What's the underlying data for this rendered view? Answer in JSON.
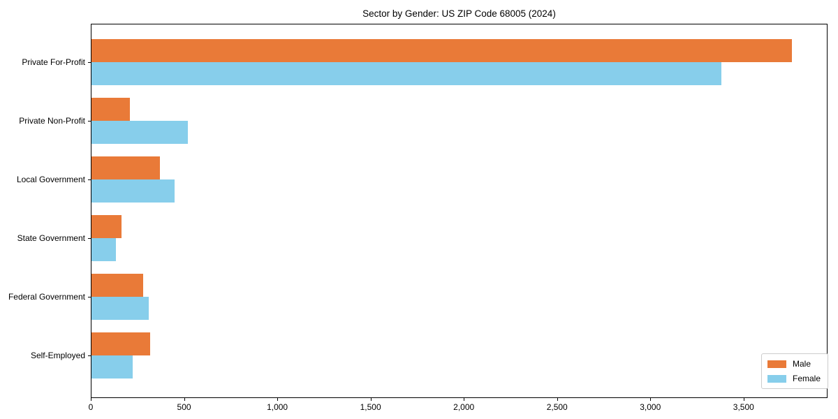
{
  "chart_data": {
    "type": "bar",
    "orientation": "horizontal",
    "title": "Sector by Gender: US ZIP Code 68005 (2024)",
    "categories": [
      "Private For-Profit",
      "Private Non-Profit",
      "Local Government",
      "State Government",
      "Federal Government",
      "Self-Employed"
    ],
    "series": [
      {
        "name": "Male",
        "color": "#E97A38",
        "values": [
          3760,
          210,
          370,
          165,
          280,
          320
        ]
      },
      {
        "name": "Female",
        "color": "#87CEEB",
        "values": [
          3380,
          520,
          450,
          135,
          310,
          225
        ]
      }
    ],
    "xlabel": "",
    "ylabel": "",
    "xlim": [
      0,
      3950
    ],
    "xticks": [
      0,
      500,
      1000,
      1500,
      2000,
      2500,
      3000,
      3500
    ],
    "xtick_labels": [
      "0",
      "500",
      "1,000",
      "1,500",
      "2,000",
      "2,500",
      "3,000",
      "3,500"
    ],
    "grid": false,
    "background_color": "#ffffff",
    "spine_color": "#000000",
    "legend": {
      "position": "lower right",
      "entries": [
        "Male",
        "Female"
      ]
    }
  }
}
